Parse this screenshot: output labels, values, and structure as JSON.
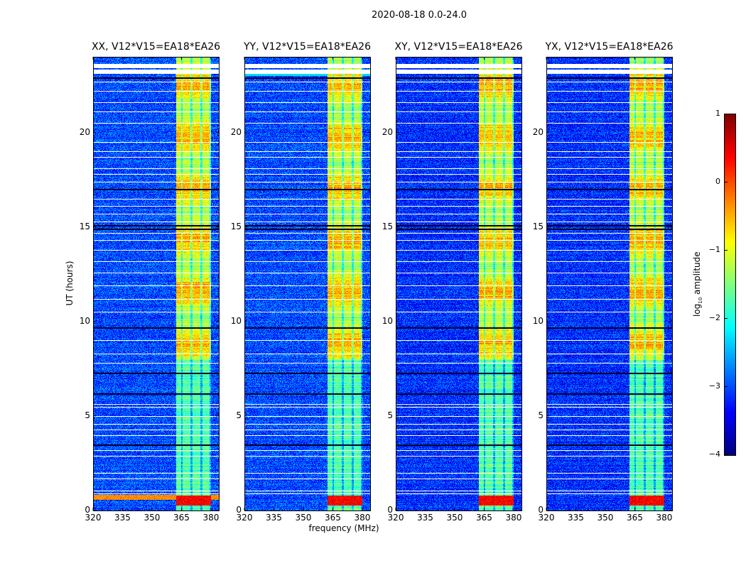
{
  "chart_data": {
    "type": "heatmap",
    "suptitle": "2020-08-18 0.0-24.0",
    "xlabel": "frequency (MHz)",
    "ylabel": "UT (hours)",
    "xlim": [
      320,
      384
    ],
    "ylim": [
      0,
      24
    ],
    "xticks": [
      "320",
      "335",
      "350",
      "365",
      "380"
    ],
    "xtick_values": [
      320,
      335,
      350,
      365,
      380
    ],
    "yticks": [
      "0",
      "5",
      "10",
      "15",
      "20"
    ],
    "ytick_values": [
      0,
      5,
      10,
      15,
      20
    ],
    "colormap": "jet",
    "panels": [
      {
        "title": "XX, V12*V15=EA18*EA26",
        "pol": "XX"
      },
      {
        "title": "YY, V12*V15=EA18*EA26",
        "pol": "YY"
      },
      {
        "title": "XY, V12*V15=EA18*EA26",
        "pol": "XY"
      },
      {
        "title": "YX, V12*V15=EA18*EA26",
        "pol": "YX"
      }
    ],
    "colorbar": {
      "label": "log10 amplitude",
      "label_main": "log",
      "label_sub": "10",
      "label_rest": " amplitude",
      "range": [
        -4,
        1
      ],
      "ticks": [
        "1",
        "0",
        "−1",
        "−2",
        "−3",
        "−4"
      ],
      "tick_values": [
        1,
        0,
        -1,
        -2,
        -3,
        -4
      ]
    },
    "signal_band_mhz": [
      362,
      380
    ],
    "band_gaps_mhz": [
      365,
      370,
      375,
      379.5
    ],
    "background_log_amp": -3.0,
    "band_log_amp": -1.2,
    "strong_interval_hours": [
      0.3,
      0.8
    ],
    "strong_log_amp": 0.4,
    "flagged_hours": [
      0.9,
      1.05,
      1.7,
      2.0,
      2.9,
      3.2,
      4.0,
      4.3,
      4.6,
      5.0,
      5.5,
      5.65,
      7.8,
      8.3,
      9.0,
      10.5,
      11.2,
      11.9,
      12.6,
      13.2,
      13.8,
      14.3,
      14.7,
      15.3,
      15.7,
      16.1,
      16.5,
      17.4,
      17.8,
      18.1,
      18.7,
      19.0,
      19.5,
      20.5,
      21.1,
      21.6,
      22.2,
      22.7,
      23.2,
      23.5
    ],
    "dark_hours": [
      3.5,
      6.2,
      7.3,
      9.7,
      14.9,
      15.1,
      17.0,
      22.9
    ]
  }
}
